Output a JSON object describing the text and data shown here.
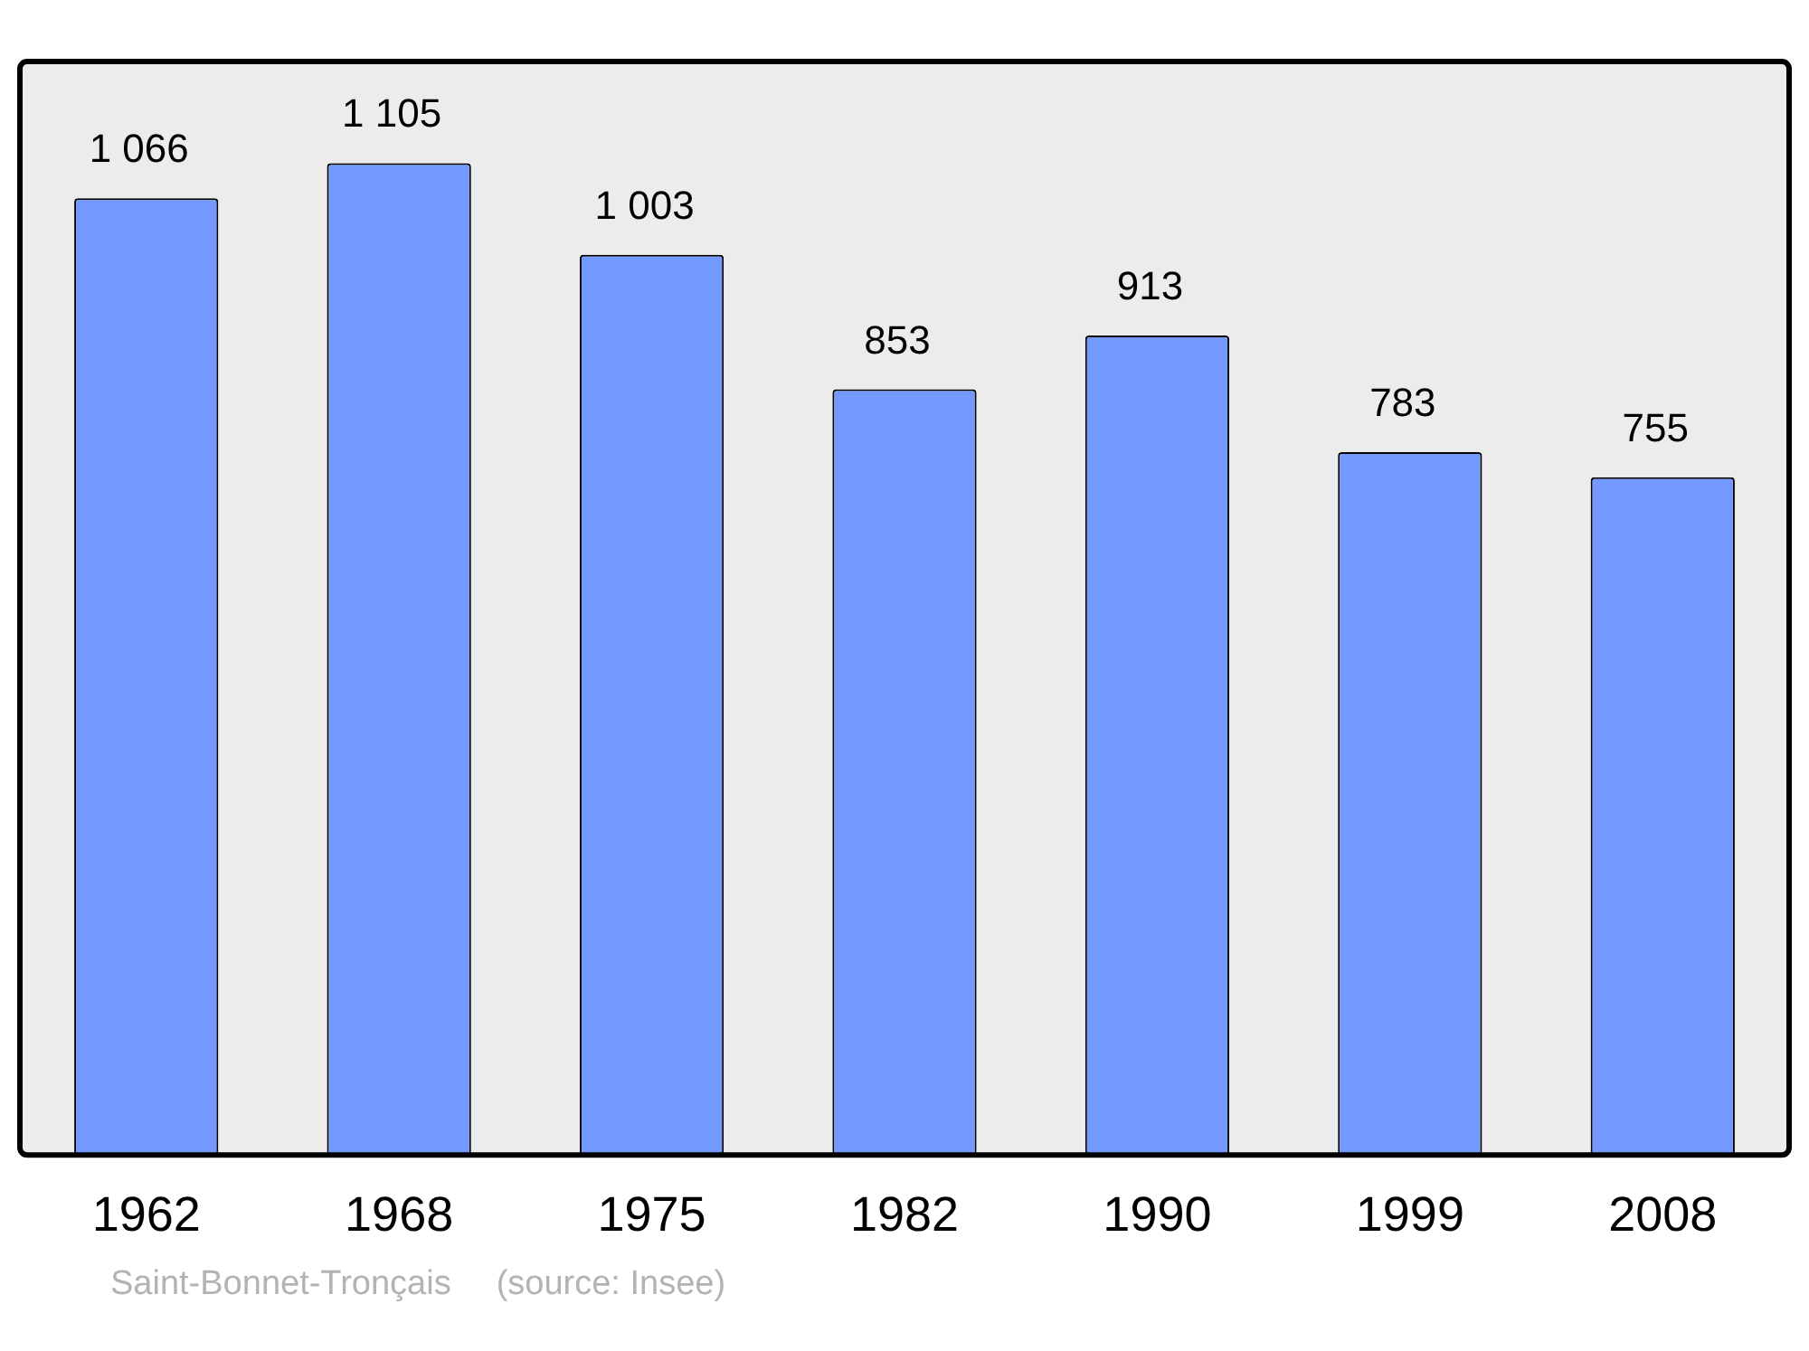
{
  "chart_data": {
    "type": "bar",
    "categories": [
      "1962",
      "1968",
      "1975",
      "1982",
      "1990",
      "1999",
      "2008"
    ],
    "values": [
      1066,
      1105,
      1003,
      853,
      913,
      783,
      755
    ],
    "value_labels": [
      "1 066",
      "1 105",
      "1 003",
      "853",
      "913",
      "783",
      "755"
    ],
    "color": "#7399ff",
    "grid": false,
    "legend": false,
    "annotations": [
      "Saint-Bonnet-Tronçais",
      "(source: Insee)"
    ]
  }
}
